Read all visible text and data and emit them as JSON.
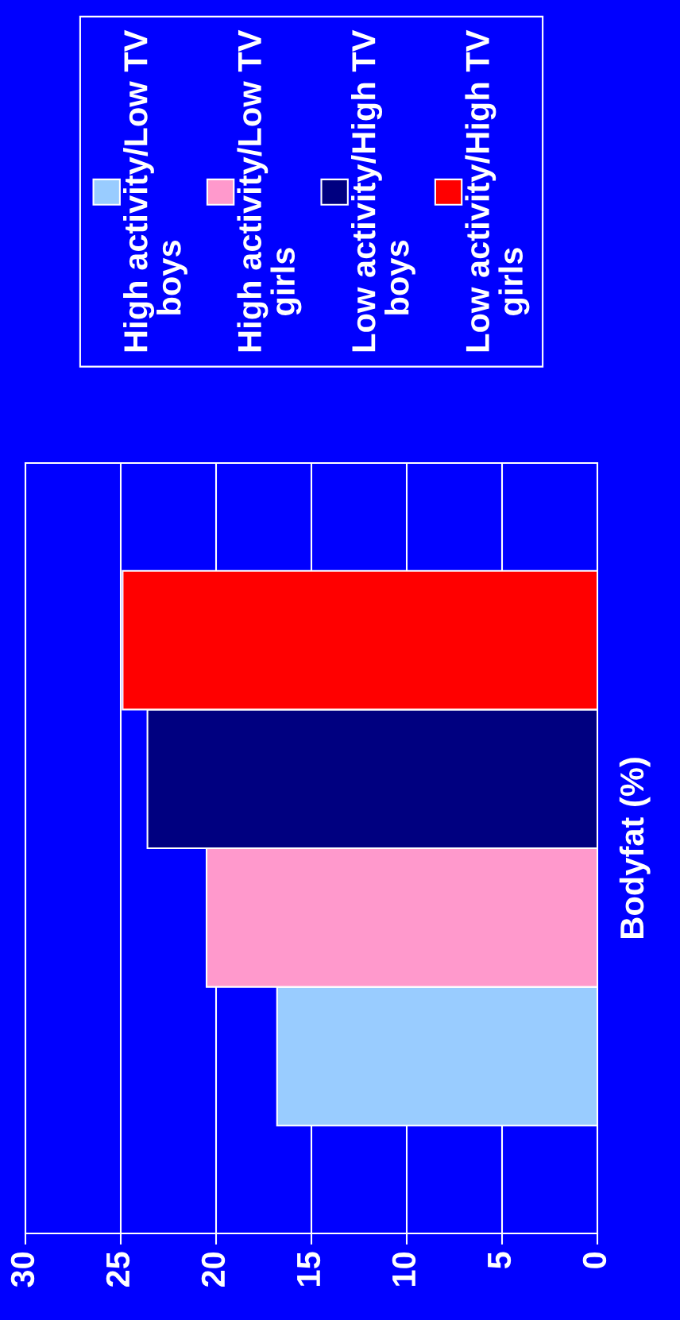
{
  "chart_data": {
    "type": "bar",
    "orientation": "horizontal",
    "ylabel": "Bodyfat (%)",
    "categories": [
      null
    ],
    "series": [
      {
        "name": "High activity/Low TV boys",
        "color": "#99ccff",
        "values": [
          16.8
        ]
      },
      {
        "name": "High activity/Low TV girls",
        "color": "#ff99cc",
        "values": [
          20.5
        ]
      },
      {
        "name": "Low activity/High TV boys",
        "color": "#000080",
        "values": [
          23.6
        ]
      },
      {
        "name": "Low activity/High TV girls",
        "color": "#ff0000",
        "values": [
          24.9
        ]
      }
    ],
    "xlim": [
      30,
      0
    ],
    "xticks": [
      0,
      5,
      10,
      15,
      20,
      25,
      30
    ],
    "grid": "x",
    "legend": "top"
  }
}
